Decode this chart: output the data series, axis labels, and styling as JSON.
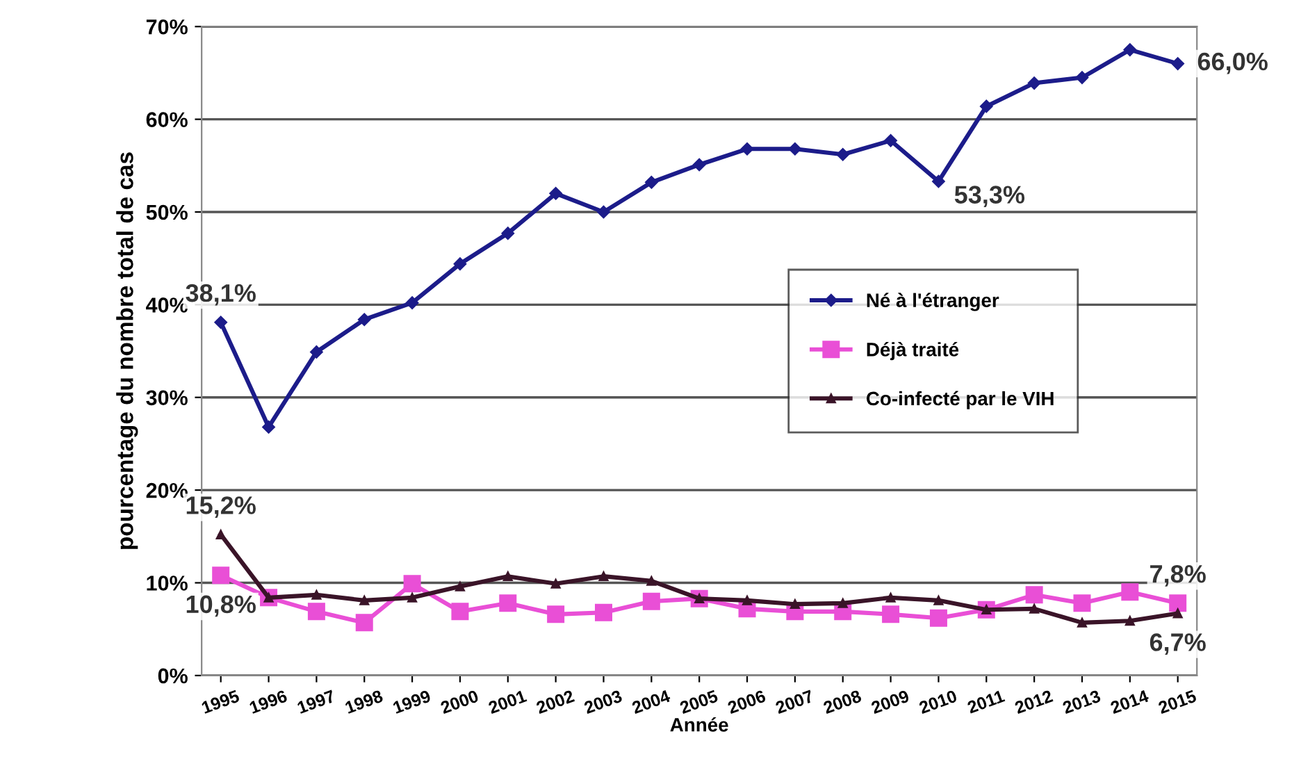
{
  "chart_data": {
    "type": "line",
    "xlabel": "Année",
    "ylabel": "pourcentage du nombre total de cas",
    "categories": [
      "1995",
      "1996",
      "1997",
      "1998",
      "1999",
      "2000",
      "2001",
      "2002",
      "2003",
      "2004",
      "2005",
      "2006",
      "2007",
      "2008",
      "2009",
      "2010",
      "2011",
      "2012",
      "2013",
      "2014",
      "2015"
    ],
    "series": [
      {
        "name": "Né à l'étranger",
        "color": "#1c1c8a",
        "marker": "diamond",
        "values": [
          38.1,
          26.8,
          34.9,
          38.4,
          40.2,
          44.4,
          47.7,
          52.0,
          50.0,
          53.2,
          55.1,
          56.8,
          56.8,
          56.2,
          57.7,
          53.3,
          61.4,
          63.9,
          64.5,
          67.5,
          66.0
        ]
      },
      {
        "name": "Déjà traité",
        "color": "#e94fd6",
        "marker": "square",
        "values": [
          10.8,
          8.4,
          6.9,
          5.7,
          9.9,
          6.9,
          7.8,
          6.6,
          6.8,
          8.0,
          8.3,
          7.2,
          6.9,
          6.9,
          6.6,
          6.2,
          7.1,
          8.7,
          7.8,
          9.0,
          7.8
        ]
      },
      {
        "name": "Co-infecté par le VIH",
        "color": "#3a1428",
        "marker": "triangle",
        "values": [
          15.2,
          8.4,
          8.7,
          8.1,
          8.4,
          9.6,
          10.7,
          9.9,
          10.7,
          10.2,
          8.3,
          8.1,
          7.7,
          7.8,
          8.4,
          8.1,
          7.1,
          7.2,
          5.7,
          5.9,
          6.7
        ]
      }
    ],
    "ylim": [
      0,
      70
    ],
    "yticks": [
      {
        "value": 0,
        "label": "0%"
      },
      {
        "value": 10,
        "label": "10%"
      },
      {
        "value": 20,
        "label": "20%"
      },
      {
        "value": 30,
        "label": "30%"
      },
      {
        "value": 40,
        "label": "40%"
      },
      {
        "value": 50,
        "label": "50%"
      },
      {
        "value": 60,
        "label": "60%"
      },
      {
        "value": 70,
        "label": "70%"
      }
    ],
    "grid": "y",
    "legend": "right",
    "line_style": "solid",
    "annotations": [
      {
        "text": "38,1%",
        "x": "1995",
        "y": 38.1
      },
      {
        "text": "53,3%",
        "x": "2010",
        "y": 53.3
      },
      {
        "text": "66,0%",
        "x": "2015",
        "y": 66.0
      },
      {
        "text": "15,2%",
        "x": "1995",
        "y": 15.2
      },
      {
        "text": "10,8%",
        "x": "1995",
        "y": 10.8
      },
      {
        "text": "7,8%",
        "x": "2015",
        "y": 7.8
      },
      {
        "text": "6,7%",
        "x": "2015",
        "y": 6.7
      }
    ]
  }
}
